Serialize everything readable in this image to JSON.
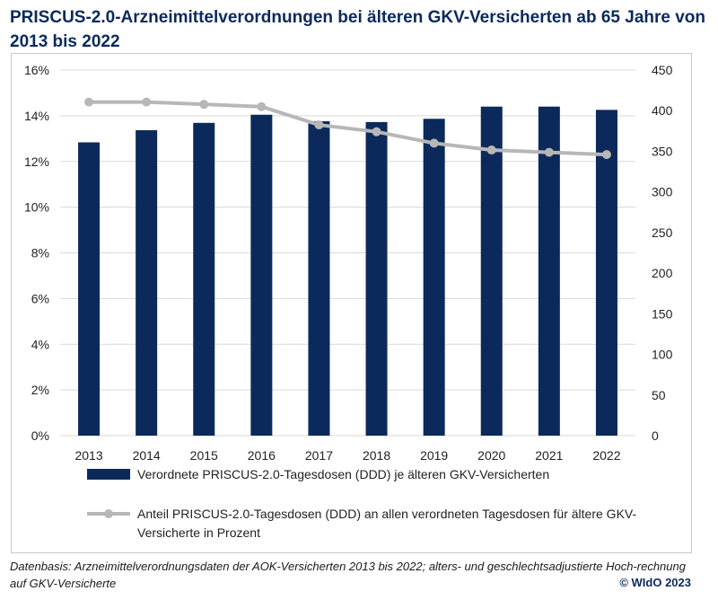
{
  "title": "PRISCUS-2.0-Arzneimittelverordnungen bei älteren GKV-Versicherten ab 65 Jahre von 2013 bis 2022",
  "footnote": "Datenbasis: Arzneimittelverordnungsdaten der AOK-Versicherten 2013 bis 2022; alters- und geschlechtsadjustierte Hoch-rechnung auf GKV-Versicherte",
  "copyright": "© WIdO 2023",
  "chart_data": {
    "type": "bar",
    "categories": [
      "2013",
      "2014",
      "2015",
      "2016",
      "2017",
      "2018",
      "2019",
      "2020",
      "2021",
      "2022"
    ],
    "series": [
      {
        "name": "Verordnete PRISCUS-2.0-Tagesdosen (DDD) je älteren GKV-Versicherten",
        "type": "bar",
        "axis": "right",
        "values": [
          361,
          376,
          385,
          395,
          387,
          386,
          390,
          405,
          405,
          401
        ]
      },
      {
        "name": "Anteil PRISCUS-2.0-Tagesdosen (DDD) an allen verordneten Tagesdosen für ältere GKV-Versicherte in Prozent",
        "type": "line",
        "axis": "left",
        "values": [
          14.6,
          14.6,
          14.5,
          14.4,
          13.6,
          13.3,
          12.8,
          12.5,
          12.4,
          12.3
        ]
      }
    ],
    "y_left": {
      "ylim": [
        0,
        16
      ],
      "ticks": [
        "0%",
        "2%",
        "4%",
        "6%",
        "8%",
        "10%",
        "12%",
        "14%",
        "16%"
      ]
    },
    "y_right": {
      "ylim": [
        0,
        450
      ],
      "ticks": [
        "0",
        "50",
        "100",
        "150",
        "200",
        "250",
        "300",
        "350",
        "400",
        "450"
      ]
    },
    "grid": "horizontal",
    "legend": "bottom",
    "colors": {
      "bar": "#0b2a5b",
      "line": "#b7b7b7",
      "grid": "#d9d9d9"
    }
  }
}
